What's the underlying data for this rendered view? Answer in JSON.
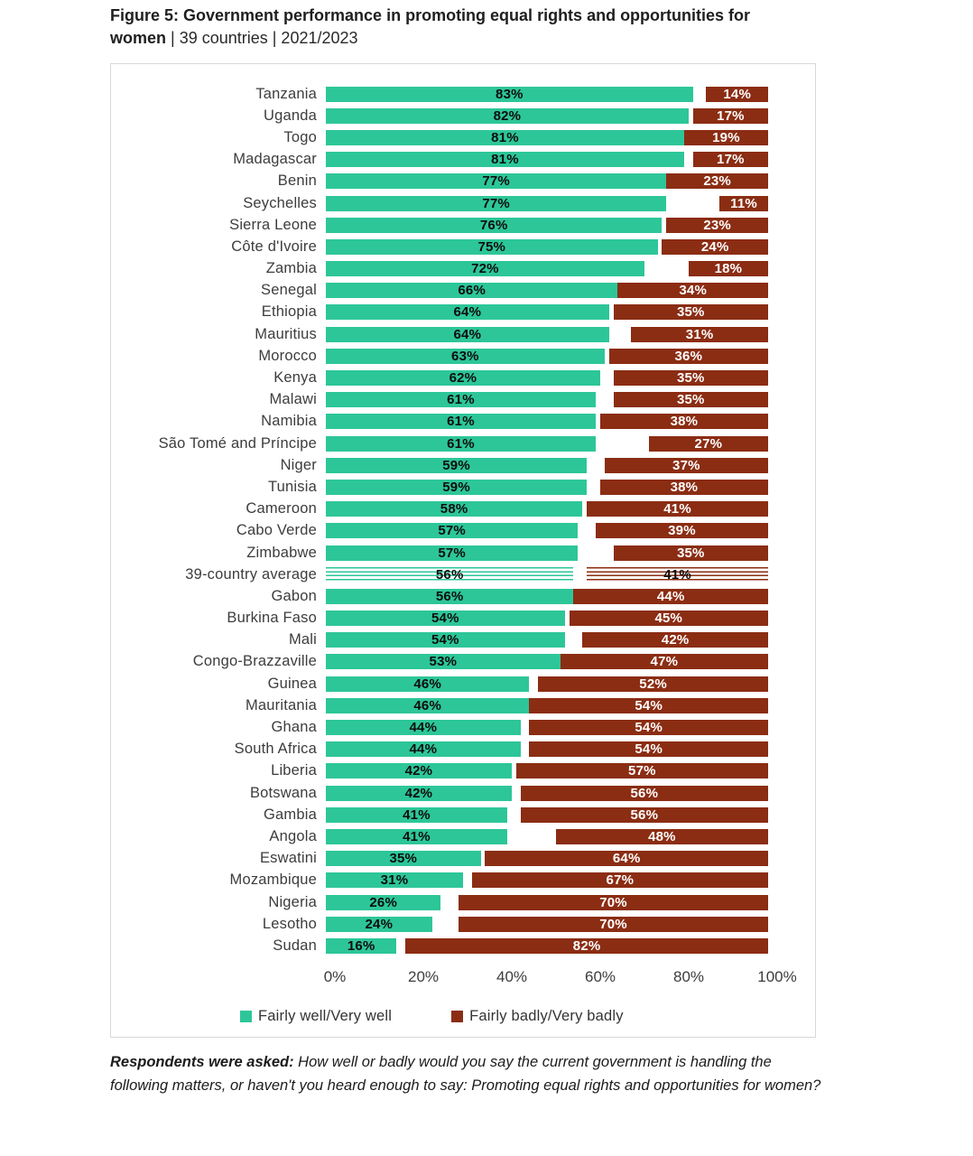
{
  "figure": {
    "title_bold": "Figure 5: Government performance in promoting equal rights and opportunities for women",
    "title_rest": " | 39 countries | 2021/2023"
  },
  "chart_data": {
    "type": "bar",
    "orientation": "horizontal_stacked",
    "unit": "%",
    "xlim": [
      0,
      100
    ],
    "x_ticks": [
      "0%",
      "20%",
      "40%",
      "60%",
      "80%",
      "100%"
    ],
    "grid": false,
    "legend_position": "bottom",
    "series": [
      {
        "name": "Fairly well/Very well",
        "color": "#2dc698"
      },
      {
        "name": "Fairly badly/Very badly",
        "color": "#8b2d13"
      }
    ],
    "rows": [
      {
        "country": "Tanzania",
        "well": 83,
        "badly": 14
      },
      {
        "country": "Uganda",
        "well": 82,
        "badly": 17
      },
      {
        "country": "Togo",
        "well": 81,
        "badly": 19
      },
      {
        "country": "Madagascar",
        "well": 81,
        "badly": 17
      },
      {
        "country": "Benin",
        "well": 77,
        "badly": 23
      },
      {
        "country": "Seychelles",
        "well": 77,
        "badly": 11
      },
      {
        "country": "Sierra Leone",
        "well": 76,
        "badly": 23
      },
      {
        "country": "Côte d'Ivoire",
        "well": 75,
        "badly": 24
      },
      {
        "country": "Zambia",
        "well": 72,
        "badly": 18
      },
      {
        "country": "Senegal",
        "well": 66,
        "badly": 34
      },
      {
        "country": "Ethiopia",
        "well": 64,
        "badly": 35
      },
      {
        "country": "Mauritius",
        "well": 64,
        "badly": 31
      },
      {
        "country": "Morocco",
        "well": 63,
        "badly": 36
      },
      {
        "country": "Kenya",
        "well": 62,
        "badly": 35
      },
      {
        "country": "Malawi",
        "well": 61,
        "badly": 35
      },
      {
        "country": "Namibia",
        "well": 61,
        "badly": 38
      },
      {
        "country": "São Tomé and Príncipe",
        "well": 61,
        "badly": 27
      },
      {
        "country": "Niger",
        "well": 59,
        "badly": 37
      },
      {
        "country": "Tunisia",
        "well": 59,
        "badly": 38
      },
      {
        "country": "Cameroon",
        "well": 58,
        "badly": 41
      },
      {
        "country": "Cabo Verde",
        "well": 57,
        "badly": 39
      },
      {
        "country": "Zimbabwe",
        "well": 57,
        "badly": 35
      },
      {
        "country": "39-country average",
        "well": 56,
        "badly": 41,
        "average": true
      },
      {
        "country": "Gabon",
        "well": 56,
        "badly": 44
      },
      {
        "country": "Burkina Faso",
        "well": 54,
        "badly": 45
      },
      {
        "country": "Mali",
        "well": 54,
        "badly": 42
      },
      {
        "country": "Congo-Brazzaville",
        "well": 53,
        "badly": 47
      },
      {
        "country": "Guinea",
        "well": 46,
        "badly": 52
      },
      {
        "country": "Mauritania",
        "well": 46,
        "badly": 54
      },
      {
        "country": "Ghana",
        "well": 44,
        "badly": 54
      },
      {
        "country": "South Africa",
        "well": 44,
        "badly": 54
      },
      {
        "country": "Liberia",
        "well": 42,
        "badly": 57
      },
      {
        "country": "Botswana",
        "well": 42,
        "badly": 56
      },
      {
        "country": "Gambia",
        "well": 41,
        "badly": 56
      },
      {
        "country": "Angola",
        "well": 41,
        "badly": 48
      },
      {
        "country": "Eswatini",
        "well": 35,
        "badly": 64
      },
      {
        "country": "Mozambique",
        "well": 31,
        "badly": 67
      },
      {
        "country": "Nigeria",
        "well": 26,
        "badly": 70
      },
      {
        "country": "Lesotho",
        "well": 24,
        "badly": 70
      },
      {
        "country": "Sudan",
        "well": 16,
        "badly": 82
      }
    ]
  },
  "footnote": {
    "bold": "Respondents were asked:",
    "rest": " How well or badly would you say the current government is handling the following matters, or haven't you heard enough to say: Promoting equal rights and opportunities for women?"
  },
  "colors": {
    "well": "#2dc698",
    "badly": "#8b2d13"
  }
}
